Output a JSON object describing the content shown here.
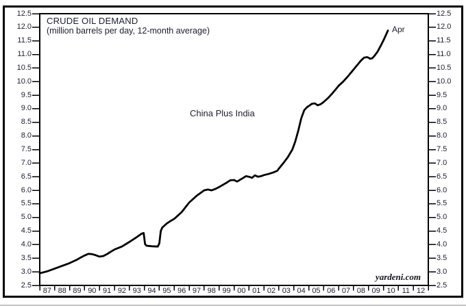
{
  "chart_data": {
    "type": "line",
    "title": "CRUDE OIL DEMAND",
    "subtitle": "(million barrels per day, 12-month average)",
    "annotation": "China Plus India",
    "last_point_label": "Apr",
    "watermark": "yardeni.com",
    "xlabel": "",
    "ylabel": "million barrels per day",
    "xlim": [
      1987,
      2013
    ],
    "ylim": [
      2.5,
      12.5
    ],
    "y_tick_step": 0.5,
    "grid": false,
    "legend_position": "none",
    "x_tick_labels": [
      "87",
      "88",
      "89",
      "90",
      "91",
      "92",
      "93",
      "94",
      "95",
      "96",
      "97",
      "98",
      "99",
      "00",
      "01",
      "02",
      "03",
      "04",
      "05",
      "06",
      "07",
      "08",
      "09",
      "10",
      "11",
      "12"
    ],
    "y_tick_labels": [
      "2.5",
      "3.0",
      "3.5",
      "4.0",
      "4.5",
      "5.0",
      "5.5",
      "6.0",
      "6.5",
      "7.0",
      "7.5",
      "8.0",
      "8.5",
      "9.0",
      "9.5",
      "10.0",
      "10.5",
      "11.0",
      "11.5",
      "12.0",
      "12.5"
    ],
    "series": [
      {
        "name": "China Plus India crude oil demand",
        "color": "#000000",
        "points": [
          [
            1987.0,
            2.95
          ],
          [
            1987.25,
            2.98
          ],
          [
            1987.5,
            3.02
          ],
          [
            1987.75,
            3.07
          ],
          [
            1988.0,
            3.12
          ],
          [
            1988.25,
            3.17
          ],
          [
            1988.5,
            3.22
          ],
          [
            1988.75,
            3.27
          ],
          [
            1989.0,
            3.32
          ],
          [
            1989.5,
            3.45
          ],
          [
            1989.75,
            3.53
          ],
          [
            1990.0,
            3.6
          ],
          [
            1990.25,
            3.66
          ],
          [
            1990.5,
            3.65
          ],
          [
            1990.75,
            3.61
          ],
          [
            1991.0,
            3.56
          ],
          [
            1991.25,
            3.58
          ],
          [
            1991.5,
            3.65
          ],
          [
            1991.75,
            3.74
          ],
          [
            1992.0,
            3.82
          ],
          [
            1992.5,
            3.93
          ],
          [
            1993.0,
            4.1
          ],
          [
            1993.5,
            4.28
          ],
          [
            1993.8,
            4.4
          ],
          [
            1993.95,
            4.43
          ],
          [
            1994.05,
            4.02
          ],
          [
            1994.15,
            3.96
          ],
          [
            1994.5,
            3.94
          ],
          [
            1994.9,
            3.93
          ],
          [
            1995.0,
            4.05
          ],
          [
            1995.1,
            4.5
          ],
          [
            1995.2,
            4.63
          ],
          [
            1995.5,
            4.78
          ],
          [
            1995.75,
            4.87
          ],
          [
            1996.0,
            4.95
          ],
          [
            1996.5,
            5.2
          ],
          [
            1997.0,
            5.55
          ],
          [
            1997.5,
            5.8
          ],
          [
            1998.0,
            6.0
          ],
          [
            1998.25,
            6.03
          ],
          [
            1998.5,
            6.0
          ],
          [
            1998.75,
            6.05
          ],
          [
            1999.0,
            6.12
          ],
          [
            1999.5,
            6.28
          ],
          [
            1999.75,
            6.37
          ],
          [
            2000.0,
            6.38
          ],
          [
            2000.2,
            6.32
          ],
          [
            2000.5,
            6.42
          ],
          [
            2000.8,
            6.52
          ],
          [
            2001.0,
            6.5
          ],
          [
            2001.2,
            6.46
          ],
          [
            2001.4,
            6.55
          ],
          [
            2001.6,
            6.5
          ],
          [
            2001.8,
            6.52
          ],
          [
            2002.0,
            6.56
          ],
          [
            2002.3,
            6.6
          ],
          [
            2002.6,
            6.65
          ],
          [
            2002.9,
            6.72
          ],
          [
            2003.0,
            6.8
          ],
          [
            2003.3,
            7.0
          ],
          [
            2003.6,
            7.22
          ],
          [
            2003.9,
            7.5
          ],
          [
            2004.1,
            7.8
          ],
          [
            2004.3,
            8.2
          ],
          [
            2004.5,
            8.65
          ],
          [
            2004.7,
            8.95
          ],
          [
            2004.9,
            9.07
          ],
          [
            2005.0,
            9.1
          ],
          [
            2005.2,
            9.18
          ],
          [
            2005.4,
            9.2
          ],
          [
            2005.6,
            9.13
          ],
          [
            2005.8,
            9.17
          ],
          [
            2006.0,
            9.25
          ],
          [
            2006.3,
            9.4
          ],
          [
            2006.6,
            9.58
          ],
          [
            2006.9,
            9.78
          ],
          [
            2007.0,
            9.85
          ],
          [
            2007.3,
            10.0
          ],
          [
            2007.6,
            10.18
          ],
          [
            2007.9,
            10.38
          ],
          [
            2008.2,
            10.58
          ],
          [
            2008.5,
            10.78
          ],
          [
            2008.7,
            10.88
          ],
          [
            2008.9,
            10.9
          ],
          [
            2009.0,
            10.88
          ],
          [
            2009.1,
            10.84
          ],
          [
            2009.25,
            10.86
          ],
          [
            2009.4,
            10.95
          ],
          [
            2009.6,
            11.1
          ],
          [
            2009.8,
            11.3
          ],
          [
            2010.0,
            11.52
          ],
          [
            2010.15,
            11.7
          ],
          [
            2010.3,
            11.88
          ]
        ]
      }
    ],
    "colors": {
      "line": "#000000",
      "frame": "#000000",
      "tick": "#000000",
      "text": "#1c1c2f"
    }
  }
}
